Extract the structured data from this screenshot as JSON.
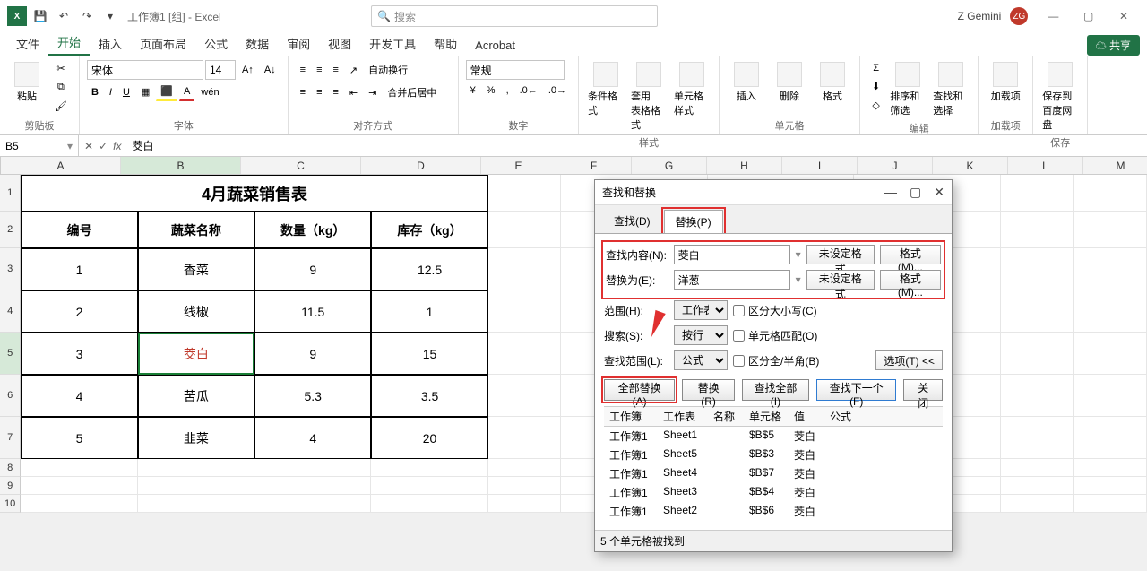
{
  "titlebar": {
    "app_icon": "X",
    "filename": "工作簿1 [组] - Excel",
    "search_placeholder": "搜索",
    "user": "Z Gemini",
    "avatar": "ZG"
  },
  "tabs": {
    "file": "文件",
    "home": "开始",
    "insert": "插入",
    "layout": "页面布局",
    "formulas": "公式",
    "data": "数据",
    "review": "审阅",
    "view": "视图",
    "dev": "开发工具",
    "help": "帮助",
    "acrobat": "Acrobat",
    "share": "☁ 共享"
  },
  "ribbon": {
    "clipboard": {
      "paste": "粘贴",
      "label": "剪贴板"
    },
    "font": {
      "name": "宋体",
      "size": "14",
      "label": "字体"
    },
    "align": {
      "wrap": "自动换行",
      "merge": "合并后居中",
      "label": "对齐方式"
    },
    "number": {
      "format": "常规",
      "label": "数字"
    },
    "styles": {
      "cond": "条件格式",
      "table": "套用\n表格格式",
      "cell": "单元格样式",
      "label": "样式"
    },
    "cells": {
      "insert": "插入",
      "delete": "删除",
      "format": "格式",
      "label": "单元格"
    },
    "editing": {
      "sort": "排序和筛选",
      "find": "查找和选择",
      "label": "编辑"
    },
    "addins": {
      "addin": "加载项",
      "label": "加载项"
    },
    "save": {
      "save": "保存到\n百度网盘",
      "label": "保存"
    }
  },
  "namebox": "B5",
  "formula": "茭白",
  "columns": [
    "A",
    "B",
    "C",
    "D",
    "E",
    "F",
    "G",
    "H",
    "I",
    "J",
    "K",
    "L",
    "M"
  ],
  "col_widths": {
    "A": 134,
    "B": 134,
    "C": 134,
    "D": 134,
    "E": 84,
    "F": 84,
    "G": 84,
    "H": 84,
    "I": 84,
    "J": 84,
    "K": 84,
    "L": 84,
    "M": 84
  },
  "table": {
    "title": "4月蔬菜销售表",
    "headers": [
      "编号",
      "蔬菜名称",
      "数量（kg）",
      "库存（kg）"
    ],
    "rows": [
      [
        "1",
        "香菜",
        "9",
        "12.5"
      ],
      [
        "2",
        "线椒",
        "11.5",
        "1"
      ],
      [
        "3",
        "茭白",
        "9",
        "15"
      ],
      [
        "4",
        "苦瓜",
        "5.3",
        "3.5"
      ],
      [
        "5",
        "韭菜",
        "4",
        "20"
      ]
    ],
    "selected_cell": {
      "row": 3,
      "col": 1
    }
  },
  "dialog": {
    "title": "查找和替换",
    "tab_find": "查找(D)",
    "tab_replace": "替换(P)",
    "find_label": "查找内容(N):",
    "find_value": "茭白",
    "replace_label": "替换为(E):",
    "replace_value": "洋葱",
    "noformat": "未设定格式",
    "format_btn": "格式(M)...",
    "scope_label": "范围(H):",
    "scope_value": "工作表",
    "search_label": "搜索(S):",
    "search_value": "按行",
    "lookin_label": "查找范围(L):",
    "lookin_value": "公式",
    "case": "区分大小写(C)",
    "whole": "单元格匹配(O)",
    "width": "区分全/半角(B)",
    "options": "选项(T) <<",
    "btn_replace_all": "全部替换(A)",
    "btn_replace": "替换(R)",
    "btn_find_all": "查找全部(I)",
    "btn_find_next": "查找下一个(F)",
    "btn_close": "关闭",
    "result_headers": [
      "工作簿",
      "工作表",
      "名称",
      "单元格",
      "值",
      "公式"
    ],
    "results": [
      [
        "工作簿1",
        "Sheet1",
        "",
        "$B$5",
        "茭白",
        ""
      ],
      [
        "工作簿1",
        "Sheet5",
        "",
        "$B$3",
        "茭白",
        ""
      ],
      [
        "工作簿1",
        "Sheet4",
        "",
        "$B$7",
        "茭白",
        ""
      ],
      [
        "工作簿1",
        "Sheet3",
        "",
        "$B$4",
        "茭白",
        ""
      ],
      [
        "工作簿1",
        "Sheet2",
        "",
        "$B$6",
        "茭白",
        ""
      ]
    ],
    "status": "5 个单元格被找到"
  }
}
